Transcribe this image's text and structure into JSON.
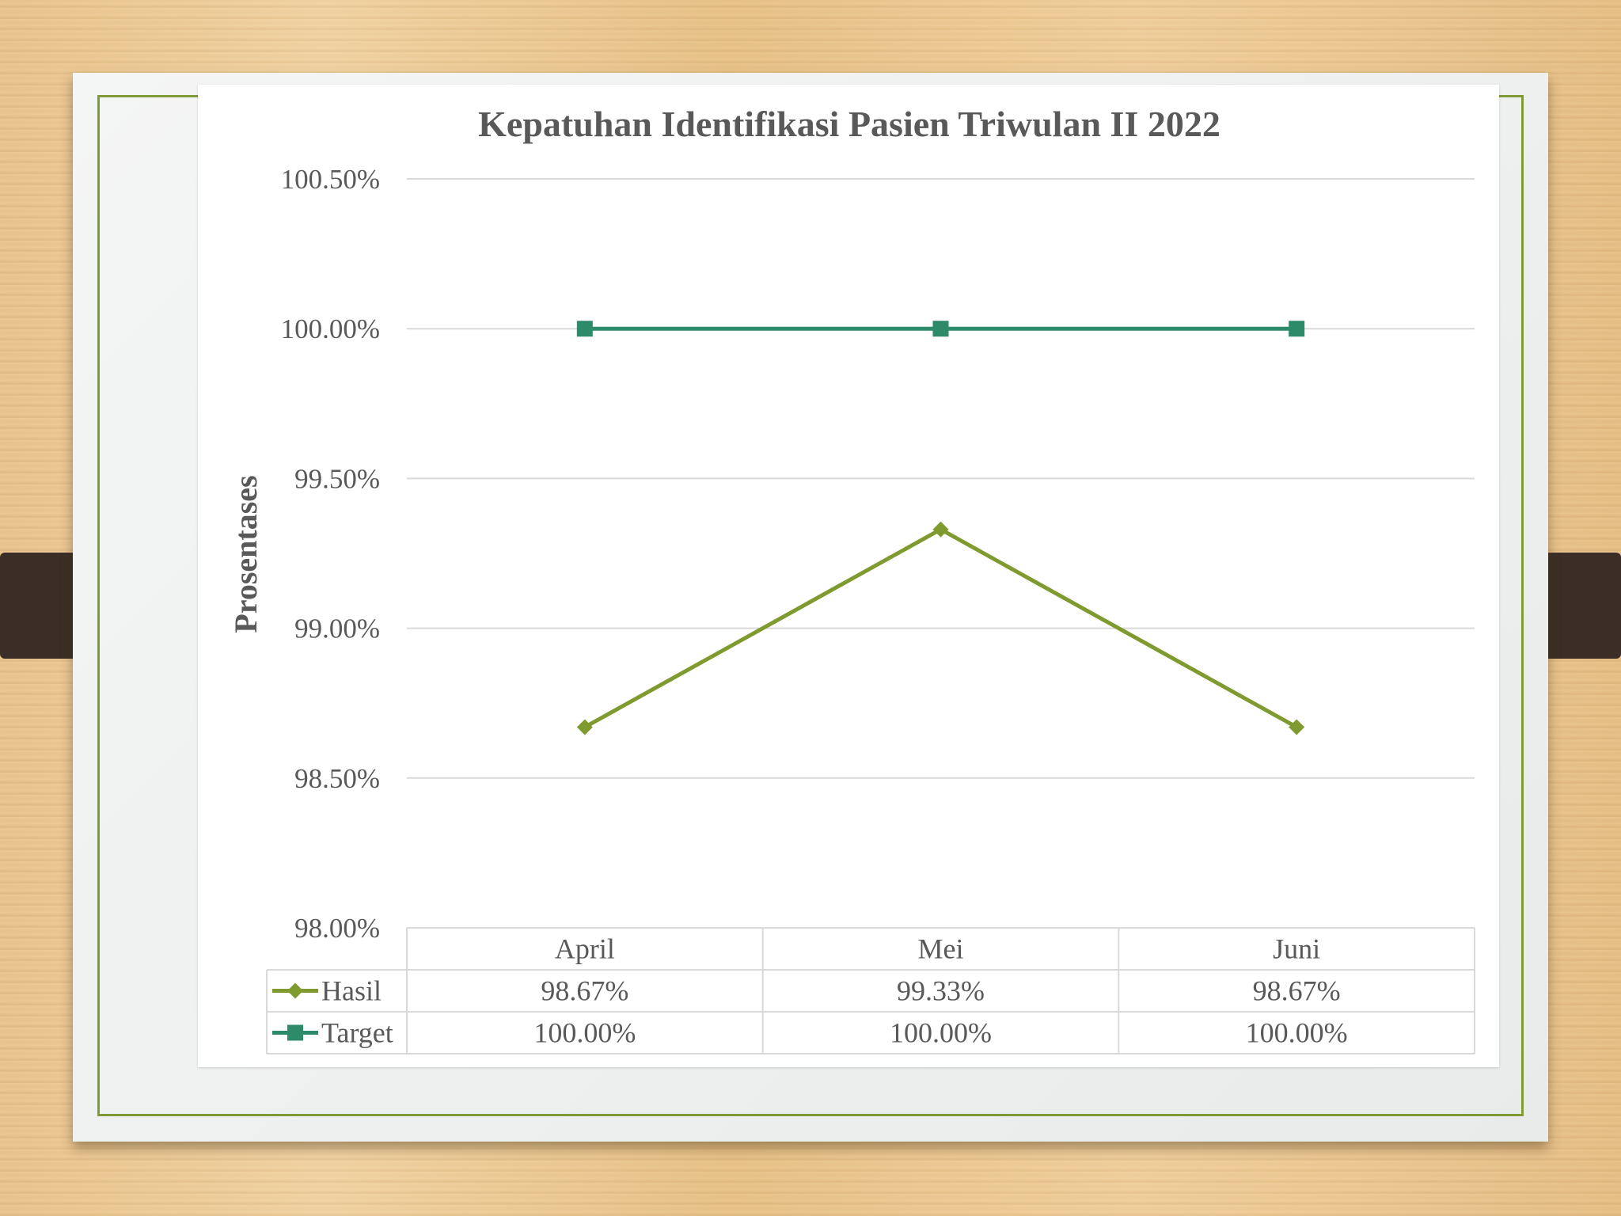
{
  "chart_data": {
    "type": "line",
    "title": "Kepatuhan Identifikasi Pasien Triwulan II 2022",
    "ylabel": "Prosentases",
    "xlabel": "",
    "categories": [
      "April",
      "Mei",
      "Juni"
    ],
    "ylim": [
      0.98,
      1.005
    ],
    "yticks": [
      "98.00%",
      "98.50%",
      "99.00%",
      "99.50%",
      "100.00%",
      "100.50%"
    ],
    "grid": true,
    "legend": "data-table",
    "series": [
      {
        "name": "Hasil",
        "values": [
          0.9867,
          0.9933,
          0.9867
        ],
        "labels": [
          "98.67%",
          "99.33%",
          "98.67%"
        ],
        "color": "#7f9a2e",
        "marker": "diamond"
      },
      {
        "name": "Target",
        "values": [
          1.0,
          1.0,
          1.0
        ],
        "labels": [
          "100.00%",
          "100.00%",
          "100.00%"
        ],
        "color": "#2e8b6a",
        "marker": "square"
      }
    ]
  }
}
